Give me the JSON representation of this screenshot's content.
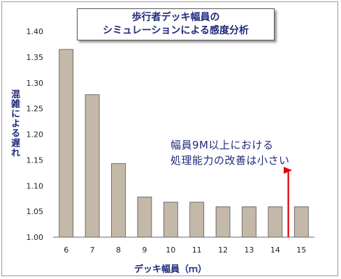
{
  "chart_data": {
    "type": "bar",
    "title_lines": [
      "歩行者デッキ幅員の",
      "シミュレーションによる感度分析"
    ],
    "xlabel": "デッキ幅員（ｍ）",
    "ylabel": "混雑による遅れ",
    "categories": [
      "6",
      "7",
      "8",
      "9",
      "10",
      "11",
      "12",
      "13",
      "14",
      "15"
    ],
    "values": [
      1.365,
      1.277,
      1.143,
      1.078,
      1.068,
      1.068,
      1.059,
      1.059,
      1.059,
      1.059
    ],
    "ylim": [
      1.0,
      1.4
    ],
    "yticks": [
      "1.00",
      "1.05",
      "1.10",
      "1.15",
      "1.20",
      "1.25",
      "1.30",
      "1.35",
      "1.40"
    ],
    "grid": false,
    "bar_color": "#c4b8a8",
    "annotation": {
      "lines": [
        "幅員9M以上における",
        "処理能力の改善は小さい"
      ],
      "arrow_color": "#e00000"
    }
  }
}
